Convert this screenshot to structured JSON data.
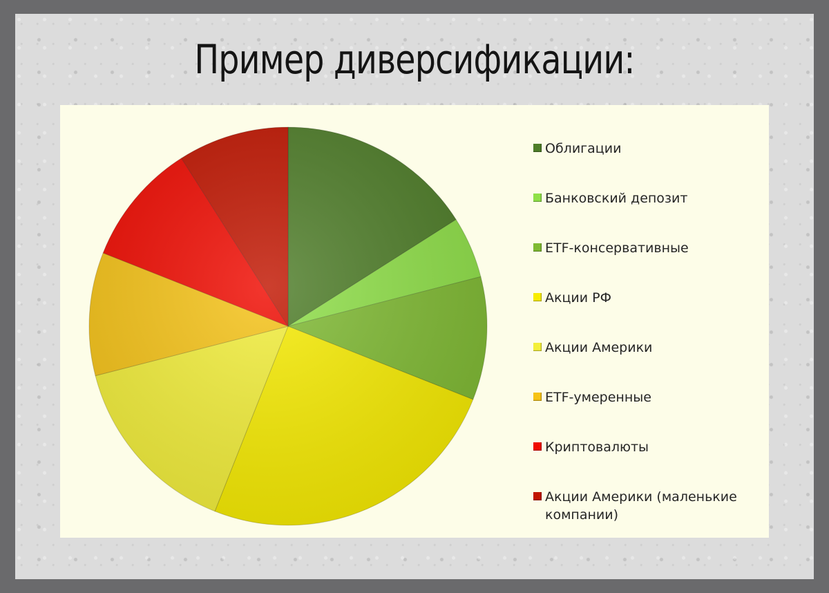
{
  "title": "Пример диверсификации:",
  "chart_data": {
    "type": "pie",
    "title": "Пример диверсификации:",
    "legend_position": "right",
    "start_angle_deg": 0,
    "direction": "clockwise",
    "slices": [
      {
        "label": "Облигации",
        "value": 16,
        "color": "#4e7d28"
      },
      {
        "label": "Банковский депозит",
        "value": 5,
        "color": "#8fe048"
      },
      {
        "label": "ETF-консервативные",
        "value": 10,
        "color": "#7fba32"
      },
      {
        "label": "Акции РФ",
        "value": 25,
        "color": "#f7ec00"
      },
      {
        "label": "Акции Америки",
        "value": 15,
        "color": "#f3ef3a"
      },
      {
        "label": "ETF-умеренные",
        "value": 10,
        "color": "#f6c316"
      },
      {
        "label": "Криптовалюты",
        "value": 10,
        "color": "#f00a00"
      },
      {
        "label": "Акции Америки (маленькие компании)",
        "value": 9,
        "color": "#c11500"
      }
    ]
  }
}
